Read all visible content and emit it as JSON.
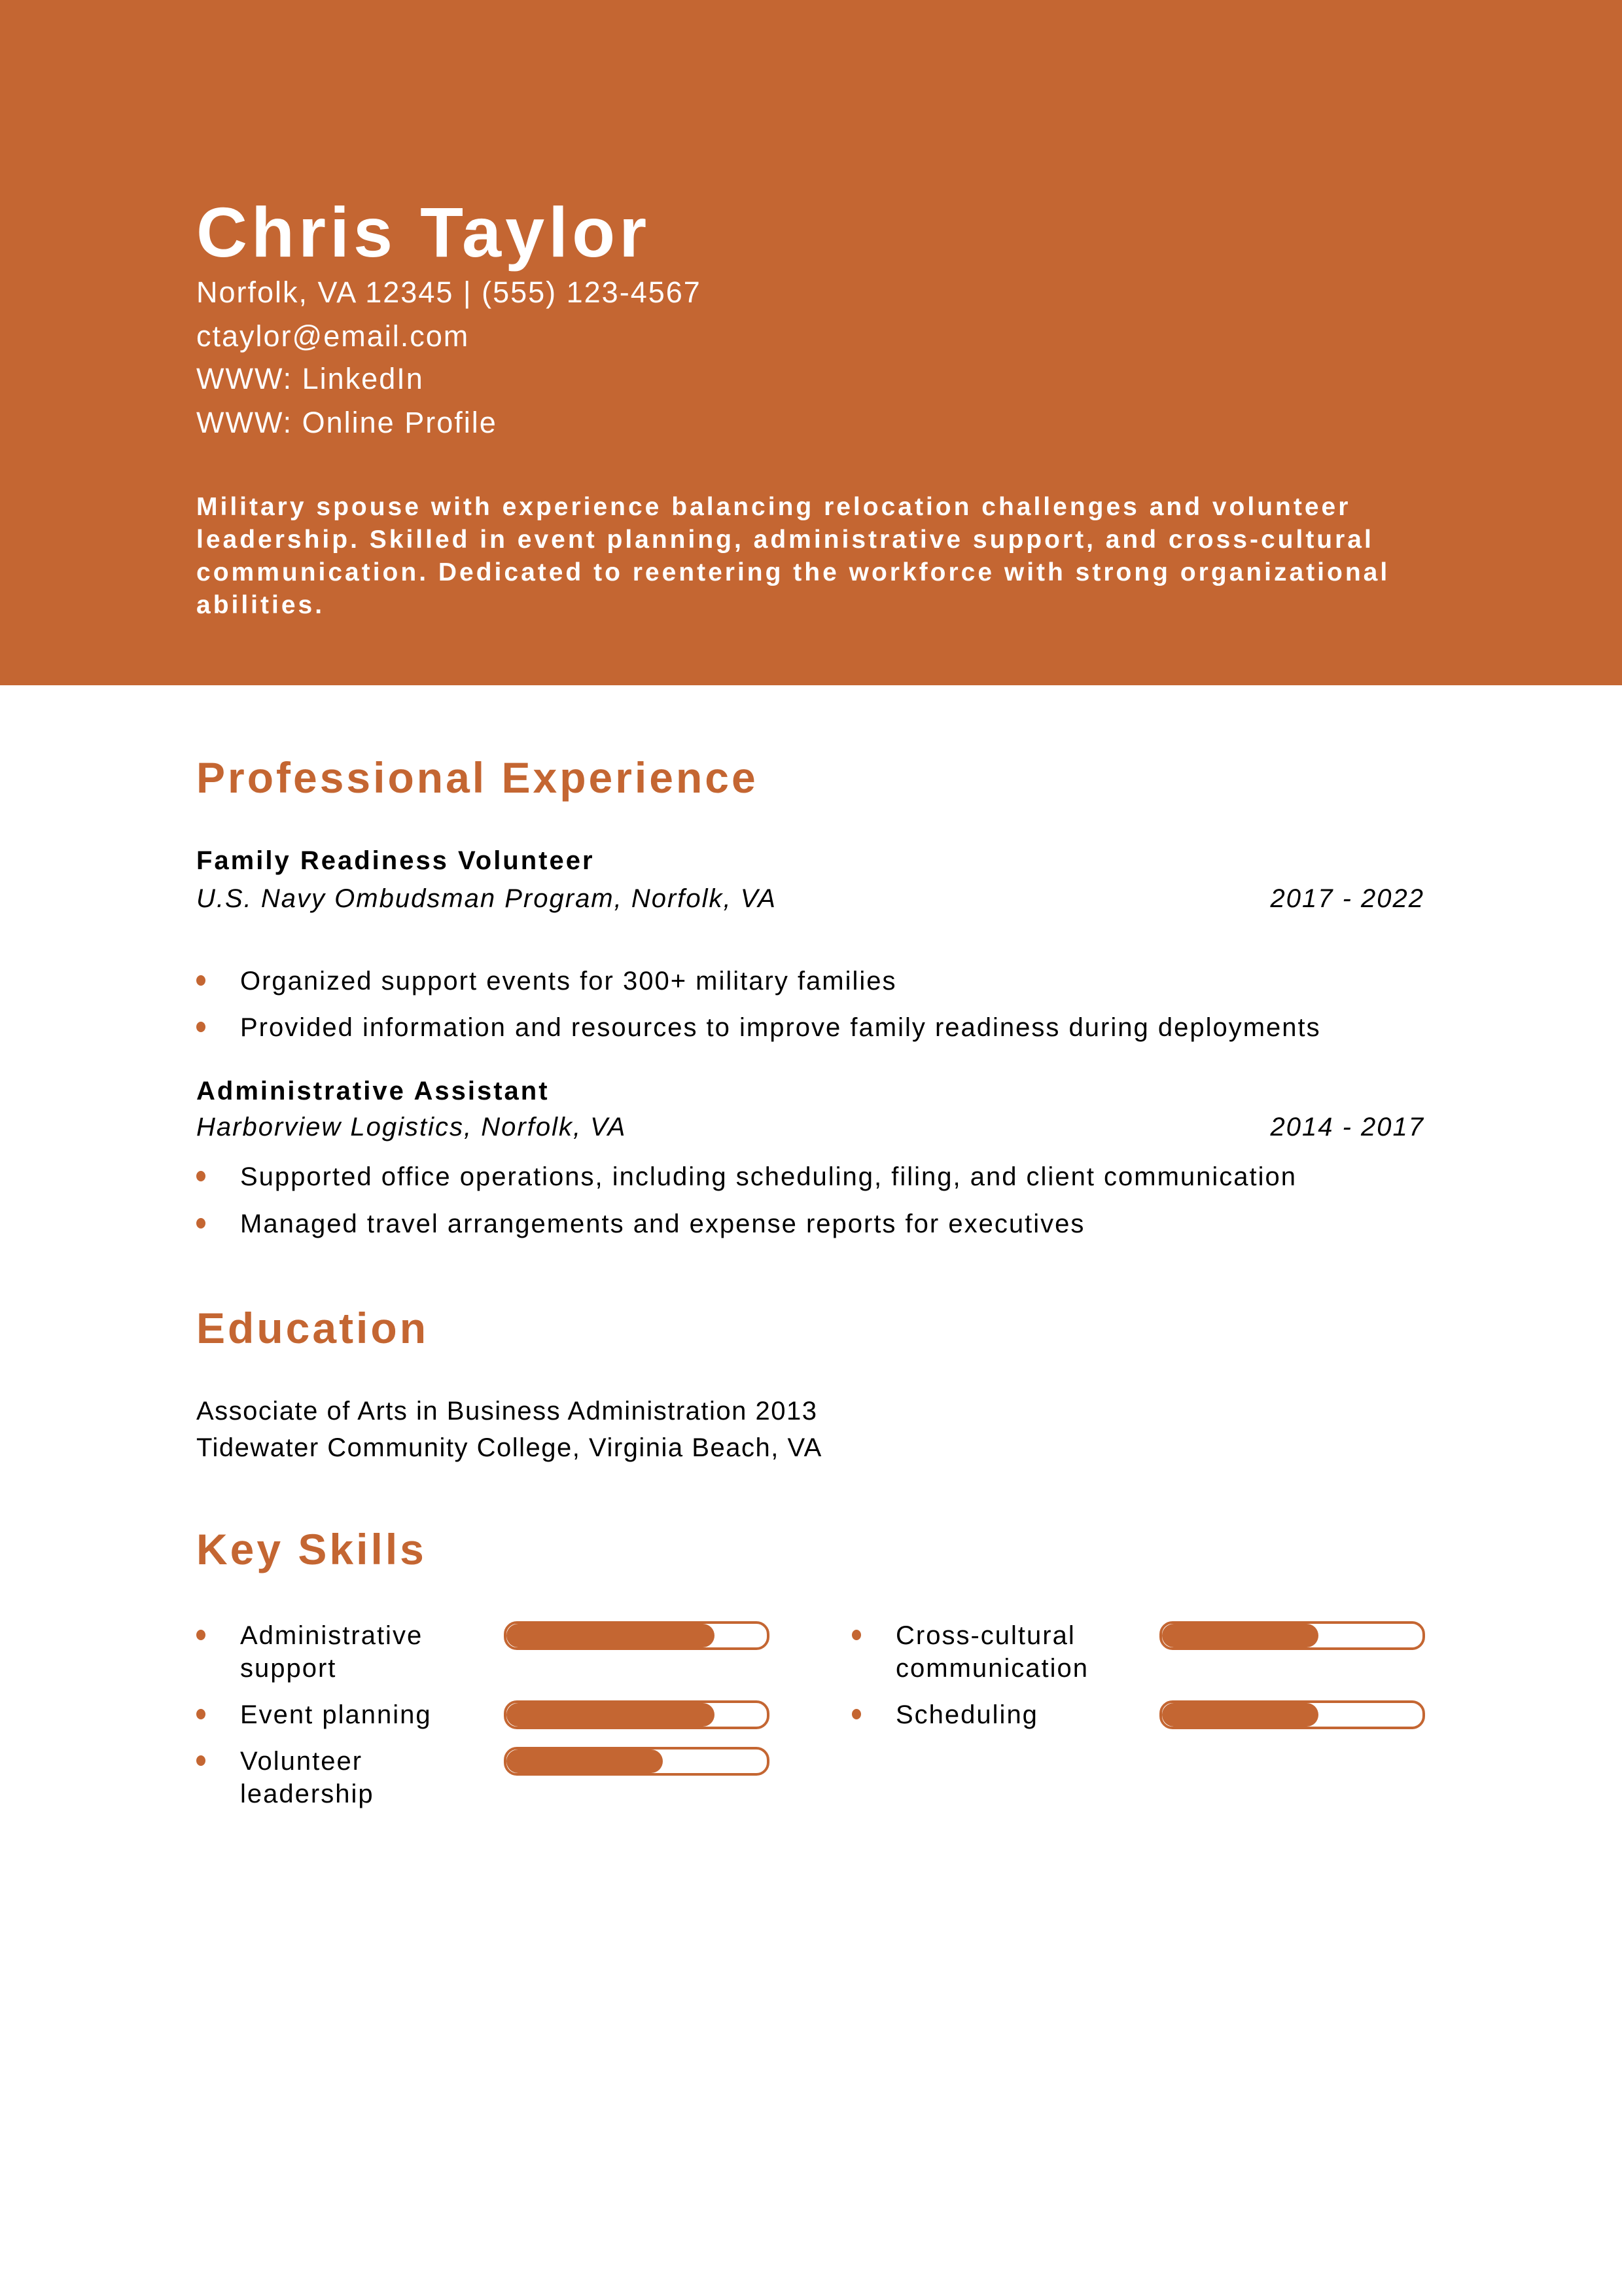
{
  "colors": {
    "accent": "#c46632"
  },
  "header": {
    "name": "Chris Taylor",
    "contact": [
      "Norfolk, VA 12345 | (555) 123-4567",
      "ctaylor@email.com",
      "WWW: LinkedIn",
      "WWW: Online Profile"
    ],
    "summary": "Military spouse with experience balancing relocation challenges and volunteer leadership. Skilled in event planning, administrative support, and cross-cultural communication. Dedicated to reentering the workforce with strong organizational abilities."
  },
  "experience": {
    "heading": "Professional Experience",
    "jobs": [
      {
        "title": "Family Readiness Volunteer",
        "company": "U.S. Navy Ombudsman Program, Norfolk, VA",
        "dates": "2017 - 2022",
        "bullets": [
          "Organized support events for 300+ military families",
          "Provided information and resources to improve family readiness during deployments"
        ]
      },
      {
        "title": "Administrative Assistant",
        "company": "Harborview Logistics, Norfolk, VA",
        "dates": "2014 - 2017",
        "bullets": [
          "Supported office operations, including scheduling, filing, and client communication",
          "Managed travel arrangements and expense reports for executives"
        ]
      }
    ]
  },
  "education": {
    "heading": "Education",
    "lines": [
      "Associate of Arts in Business Administration 2013",
      "Tidewater Community College, Virginia Beach, VA"
    ]
  },
  "skills": {
    "heading": "Key Skills",
    "items": [
      {
        "name": "Administrative support",
        "level": 0.8
      },
      {
        "name": "Event planning",
        "level": 0.8
      },
      {
        "name": "Volunteer leadership",
        "level": 0.6
      },
      {
        "name": "Cross-cultural communication",
        "level": 0.6
      },
      {
        "name": "Scheduling",
        "level": 0.6
      }
    ]
  }
}
